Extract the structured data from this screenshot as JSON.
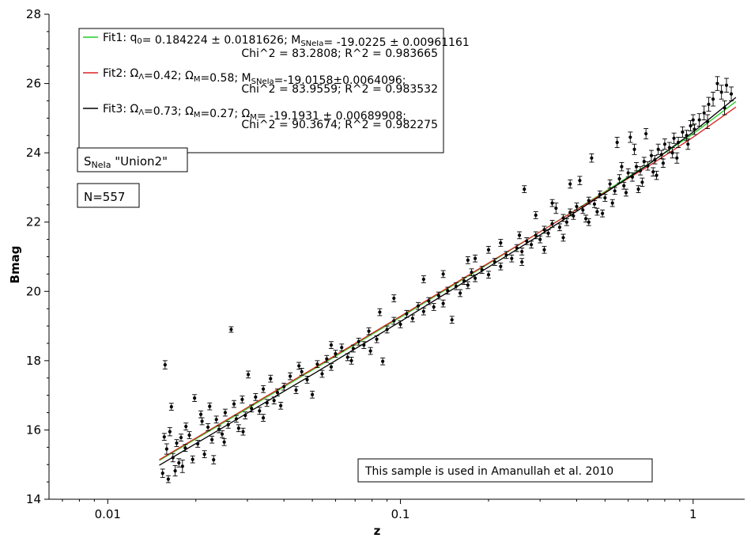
{
  "chart_data": {
    "type": "scatter",
    "xlabel": "z",
    "ylabel": "Bmag",
    "x_scale": "log",
    "xlim": [
      0.0063,
      1.5
    ],
    "ylim": [
      14,
      28
    ],
    "x_ticks": [
      {
        "value": 0.01,
        "label": "0.01"
      },
      {
        "value": 0.1,
        "label": "0.1"
      },
      {
        "value": 1,
        "label": "1"
      }
    ],
    "y_ticks": [
      {
        "value": 14,
        "label": "14"
      },
      {
        "value": 16,
        "label": "16"
      },
      {
        "value": 18,
        "label": "18"
      },
      {
        "value": 20,
        "label": "20"
      },
      {
        "value": 22,
        "label": "22"
      },
      {
        "value": 24,
        "label": "24"
      },
      {
        "value": 26,
        "label": "26"
      },
      {
        "value": 28,
        "label": "28"
      }
    ],
    "grid": false,
    "legend_placement": "top-left",
    "legend": [
      {
        "name": "Fit1",
        "color": "#22cc22",
        "label_main": "Fit1: q",
        "label_sub": "0",
        "label_rest": "= 0.184224 ± 0.0181626; M",
        "label_sub2": "SNeIa",
        "label_rest2": "= -19.0225 ± 0.00961161",
        "line2": "Chi^2 = 83.2808; R^2 = 0.983665"
      },
      {
        "name": "Fit2",
        "color": "#dd2222",
        "label_main": "Fit2: Ω",
        "label_sub": "Λ",
        "label_rest": "=0.42; Ω",
        "label_sub2": "M",
        "label_rest2": "=0.58; M",
        "label_sub3": "SNeIa",
        "label_rest3": "=-19.0158±0.0064096;",
        "line2": "Chi^2 = 83.9559; R^2 = 0.983532"
      },
      {
        "name": "Fit3",
        "color": "#000000",
        "label_main": "Fit3: Ω",
        "label_sub": "Λ",
        "label_rest": "=0.73; Ω",
        "label_sub2": "M",
        "label_rest2": "=0.27; Ω",
        "label_sub3": "M",
        "label_rest3": "= -19.1931 ± 0.00689908;",
        "line2": "Chi^2 = 90.3674; R^2 = 0.982275"
      }
    ],
    "annotations": {
      "sample_main": "S",
      "sample_sub": "NeIa",
      "sample_rest": " \"Union2\"",
      "count": "N=557",
      "note": "This sample is used in Amanullah et al. 2010"
    },
    "fit_curves": [
      {
        "name": "Fit1",
        "color": "#22cc22",
        "points": [
          [
            0.015,
            15.12
          ],
          [
            0.03,
            16.62
          ],
          [
            0.05,
            17.73
          ],
          [
            0.1,
            19.25
          ],
          [
            0.2,
            20.8
          ],
          [
            0.3,
            21.72
          ],
          [
            0.5,
            22.88
          ],
          [
            0.7,
            23.66
          ],
          [
            1.0,
            24.55
          ],
          [
            1.4,
            25.48
          ]
        ]
      },
      {
        "name": "Fit2",
        "color": "#dd2222",
        "points": [
          [
            0.015,
            15.14
          ],
          [
            0.03,
            16.65
          ],
          [
            0.05,
            17.76
          ],
          [
            0.1,
            19.28
          ],
          [
            0.2,
            20.82
          ],
          [
            0.3,
            21.72
          ],
          [
            0.5,
            22.86
          ],
          [
            0.7,
            23.6
          ],
          [
            1.0,
            24.45
          ],
          [
            1.4,
            25.32
          ]
        ]
      },
      {
        "name": "Fit3",
        "color": "#000000",
        "points": [
          [
            0.015,
            14.98
          ],
          [
            0.03,
            16.49
          ],
          [
            0.05,
            17.6
          ],
          [
            0.1,
            19.13
          ],
          [
            0.2,
            20.7
          ],
          [
            0.3,
            21.63
          ],
          [
            0.5,
            22.84
          ],
          [
            0.7,
            23.65
          ],
          [
            1.0,
            24.6
          ],
          [
            1.4,
            25.6
          ]
        ]
      }
    ],
    "points": [
      {
        "x": 0.0154,
        "y": 14.75,
        "err": 0.12
      },
      {
        "x": 0.0156,
        "y": 15.8,
        "err": 0.1
      },
      {
        "x": 0.0157,
        "y": 17.88,
        "err": 0.12
      },
      {
        "x": 0.0159,
        "y": 15.45,
        "err": 0.15
      },
      {
        "x": 0.0161,
        "y": 14.58,
        "err": 0.1
      },
      {
        "x": 0.0163,
        "y": 15.95,
        "err": 0.12
      },
      {
        "x": 0.0165,
        "y": 16.67,
        "err": 0.1
      },
      {
        "x": 0.0167,
        "y": 15.2,
        "err": 0.12
      },
      {
        "x": 0.017,
        "y": 14.82,
        "err": 0.15
      },
      {
        "x": 0.0172,
        "y": 15.62,
        "err": 0.1
      },
      {
        "x": 0.0175,
        "y": 15.05,
        "err": 0.12
      },
      {
        "x": 0.0178,
        "y": 15.78,
        "err": 0.1
      },
      {
        "x": 0.018,
        "y": 14.95,
        "err": 0.18
      },
      {
        "x": 0.0184,
        "y": 15.48,
        "err": 0.1
      },
      {
        "x": 0.019,
        "y": 15.85,
        "err": 0.1
      },
      {
        "x": 0.0195,
        "y": 15.15,
        "err": 0.1
      },
      {
        "x": 0.0198,
        "y": 16.92,
        "err": 0.1
      },
      {
        "x": 0.0203,
        "y": 15.6,
        "err": 0.1
      },
      {
        "x": 0.0208,
        "y": 16.45,
        "err": 0.1
      },
      {
        "x": 0.0214,
        "y": 15.3,
        "err": 0.1
      },
      {
        "x": 0.022,
        "y": 16.08,
        "err": 0.1
      },
      {
        "x": 0.0223,
        "y": 16.68,
        "err": 0.1
      },
      {
        "x": 0.0227,
        "y": 15.72,
        "err": 0.1
      },
      {
        "x": 0.023,
        "y": 15.14,
        "err": 0.12
      },
      {
        "x": 0.0235,
        "y": 16.3,
        "err": 0.1
      },
      {
        "x": 0.024,
        "y": 16.02,
        "err": 0.1
      },
      {
        "x": 0.0246,
        "y": 15.88,
        "err": 0.1
      },
      {
        "x": 0.0252,
        "y": 16.5,
        "err": 0.1
      },
      {
        "x": 0.0258,
        "y": 16.15,
        "err": 0.1
      },
      {
        "x": 0.0264,
        "y": 18.9,
        "err": 0.08
      },
      {
        "x": 0.027,
        "y": 16.75,
        "err": 0.1
      },
      {
        "x": 0.0275,
        "y": 16.32,
        "err": 0.1
      },
      {
        "x": 0.028,
        "y": 16.05,
        "err": 0.1
      },
      {
        "x": 0.0288,
        "y": 16.88,
        "err": 0.1
      },
      {
        "x": 0.0295,
        "y": 16.42,
        "err": 0.1
      },
      {
        "x": 0.0302,
        "y": 17.6,
        "err": 0.1
      },
      {
        "x": 0.031,
        "y": 16.62,
        "err": 0.1
      },
      {
        "x": 0.032,
        "y": 16.95,
        "err": 0.1
      },
      {
        "x": 0.033,
        "y": 16.55,
        "err": 0.1
      },
      {
        "x": 0.034,
        "y": 17.18,
        "err": 0.1
      },
      {
        "x": 0.035,
        "y": 16.78,
        "err": 0.1
      },
      {
        "x": 0.036,
        "y": 17.48,
        "err": 0.1
      },
      {
        "x": 0.037,
        "y": 16.85,
        "err": 0.1
      },
      {
        "x": 0.038,
        "y": 17.08,
        "err": 0.1
      },
      {
        "x": 0.04,
        "y": 17.25,
        "err": 0.1
      },
      {
        "x": 0.042,
        "y": 17.55,
        "err": 0.1
      },
      {
        "x": 0.044,
        "y": 17.15,
        "err": 0.1
      },
      {
        "x": 0.046,
        "y": 17.68,
        "err": 0.1
      },
      {
        "x": 0.048,
        "y": 17.45,
        "err": 0.1
      },
      {
        "x": 0.05,
        "y": 17.02,
        "err": 0.1
      },
      {
        "x": 0.052,
        "y": 17.9,
        "err": 0.1
      },
      {
        "x": 0.054,
        "y": 17.62,
        "err": 0.1
      },
      {
        "x": 0.056,
        "y": 18.05,
        "err": 0.1
      },
      {
        "x": 0.058,
        "y": 17.82,
        "err": 0.1
      },
      {
        "x": 0.06,
        "y": 18.2,
        "err": 0.1
      },
      {
        "x": 0.063,
        "y": 18.38,
        "err": 0.1
      },
      {
        "x": 0.066,
        "y": 18.1,
        "err": 0.1
      },
      {
        "x": 0.069,
        "y": 18.35,
        "err": 0.1
      },
      {
        "x": 0.072,
        "y": 18.55,
        "err": 0.1
      },
      {
        "x": 0.075,
        "y": 18.45,
        "err": 0.1
      },
      {
        "x": 0.079,
        "y": 18.28,
        "err": 0.1
      },
      {
        "x": 0.083,
        "y": 18.62,
        "err": 0.1
      },
      {
        "x": 0.087,
        "y": 17.98,
        "err": 0.1
      },
      {
        "x": 0.09,
        "y": 18.9,
        "err": 0.1
      },
      {
        "x": 0.095,
        "y": 19.15,
        "err": 0.1
      },
      {
        "x": 0.1,
        "y": 19.05,
        "err": 0.1
      },
      {
        "x": 0.105,
        "y": 19.35,
        "err": 0.1
      },
      {
        "x": 0.11,
        "y": 19.22,
        "err": 0.1
      },
      {
        "x": 0.115,
        "y": 19.58,
        "err": 0.1
      },
      {
        "x": 0.12,
        "y": 19.42,
        "err": 0.1
      },
      {
        "x": 0.125,
        "y": 19.72,
        "err": 0.1
      },
      {
        "x": 0.13,
        "y": 19.55,
        "err": 0.1
      },
      {
        "x": 0.135,
        "y": 19.88,
        "err": 0.1
      },
      {
        "x": 0.14,
        "y": 19.65,
        "err": 0.1
      },
      {
        "x": 0.145,
        "y": 20.02,
        "err": 0.1
      },
      {
        "x": 0.15,
        "y": 19.18,
        "err": 0.1
      },
      {
        "x": 0.155,
        "y": 20.15,
        "err": 0.1
      },
      {
        "x": 0.16,
        "y": 19.95,
        "err": 0.1
      },
      {
        "x": 0.165,
        "y": 20.3,
        "err": 0.1
      },
      {
        "x": 0.17,
        "y": 20.18,
        "err": 0.1
      },
      {
        "x": 0.175,
        "y": 20.55,
        "err": 0.1
      },
      {
        "x": 0.18,
        "y": 20.38,
        "err": 0.1
      },
      {
        "x": 0.19,
        "y": 20.62,
        "err": 0.1
      },
      {
        "x": 0.2,
        "y": 20.48,
        "err": 0.1
      },
      {
        "x": 0.21,
        "y": 20.85,
        "err": 0.1
      },
      {
        "x": 0.22,
        "y": 20.72,
        "err": 0.1
      },
      {
        "x": 0.23,
        "y": 21.05,
        "err": 0.1
      },
      {
        "x": 0.24,
        "y": 20.95,
        "err": 0.1
      },
      {
        "x": 0.25,
        "y": 21.25,
        "err": 0.1
      },
      {
        "x": 0.255,
        "y": 21.62,
        "err": 0.1
      },
      {
        "x": 0.26,
        "y": 21.15,
        "err": 0.1
      },
      {
        "x": 0.265,
        "y": 22.95,
        "err": 0.1
      },
      {
        "x": 0.27,
        "y": 21.45,
        "err": 0.1
      },
      {
        "x": 0.28,
        "y": 21.35,
        "err": 0.1
      },
      {
        "x": 0.29,
        "y": 21.62,
        "err": 0.1
      },
      {
        "x": 0.3,
        "y": 21.5,
        "err": 0.1
      },
      {
        "x": 0.31,
        "y": 21.78,
        "err": 0.1
      },
      {
        "x": 0.32,
        "y": 21.68,
        "err": 0.1
      },
      {
        "x": 0.33,
        "y": 21.95,
        "err": 0.1
      },
      {
        "x": 0.34,
        "y": 22.4,
        "err": 0.15
      },
      {
        "x": 0.35,
        "y": 21.85,
        "err": 0.1
      },
      {
        "x": 0.36,
        "y": 22.12,
        "err": 0.1
      },
      {
        "x": 0.37,
        "y": 22.0,
        "err": 0.1
      },
      {
        "x": 0.38,
        "y": 22.28,
        "err": 0.1
      },
      {
        "x": 0.39,
        "y": 22.18,
        "err": 0.1
      },
      {
        "x": 0.4,
        "y": 22.45,
        "err": 0.1
      },
      {
        "x": 0.42,
        "y": 22.35,
        "err": 0.1
      },
      {
        "x": 0.44,
        "y": 22.62,
        "err": 0.1
      },
      {
        "x": 0.46,
        "y": 22.52,
        "err": 0.1
      },
      {
        "x": 0.48,
        "y": 22.8,
        "err": 0.1
      },
      {
        "x": 0.5,
        "y": 22.7,
        "err": 0.1
      },
      {
        "x": 0.52,
        "y": 23.1,
        "err": 0.12
      },
      {
        "x": 0.54,
        "y": 22.9,
        "err": 0.1
      },
      {
        "x": 0.56,
        "y": 23.25,
        "err": 0.12
      },
      {
        "x": 0.58,
        "y": 23.05,
        "err": 0.1
      },
      {
        "x": 0.6,
        "y": 23.42,
        "err": 0.12
      },
      {
        "x": 0.62,
        "y": 23.3,
        "err": 0.12
      },
      {
        "x": 0.64,
        "y": 23.6,
        "err": 0.12
      },
      {
        "x": 0.66,
        "y": 23.48,
        "err": 0.12
      },
      {
        "x": 0.68,
        "y": 23.75,
        "err": 0.12
      },
      {
        "x": 0.7,
        "y": 23.62,
        "err": 0.12
      },
      {
        "x": 0.72,
        "y": 23.92,
        "err": 0.15
      },
      {
        "x": 0.74,
        "y": 23.8,
        "err": 0.12
      },
      {
        "x": 0.76,
        "y": 24.1,
        "err": 0.15
      },
      {
        "x": 0.78,
        "y": 23.95,
        "err": 0.12
      },
      {
        "x": 0.8,
        "y": 24.25,
        "err": 0.15
      },
      {
        "x": 0.83,
        "y": 24.15,
        "err": 0.15
      },
      {
        "x": 0.86,
        "y": 24.42,
        "err": 0.15
      },
      {
        "x": 0.89,
        "y": 24.3,
        "err": 0.15
      },
      {
        "x": 0.92,
        "y": 24.6,
        "err": 0.15
      },
      {
        "x": 0.95,
        "y": 24.5,
        "err": 0.15
      },
      {
        "x": 0.98,
        "y": 24.78,
        "err": 0.15
      },
      {
        "x": 1.01,
        "y": 24.68,
        "err": 0.15
      },
      {
        "x": 1.05,
        "y": 24.95,
        "err": 0.18
      },
      {
        "x": 1.09,
        "y": 25.15,
        "err": 0.2
      },
      {
        "x": 1.13,
        "y": 25.4,
        "err": 0.2
      },
      {
        "x": 1.17,
        "y": 25.55,
        "err": 0.2
      },
      {
        "x": 1.21,
        "y": 26.0,
        "err": 0.2
      },
      {
        "x": 1.25,
        "y": 25.75,
        "err": 0.2
      },
      {
        "x": 1.3,
        "y": 25.95,
        "err": 0.2
      },
      {
        "x": 1.35,
        "y": 25.7,
        "err": 0.2
      },
      {
        "x": 0.45,
        "y": 23.85,
        "err": 0.12
      },
      {
        "x": 0.41,
        "y": 23.2,
        "err": 0.12
      },
      {
        "x": 0.57,
        "y": 23.6,
        "err": 0.12
      },
      {
        "x": 0.63,
        "y": 24.1,
        "err": 0.15
      },
      {
        "x": 0.43,
        "y": 22.1,
        "err": 0.1
      },
      {
        "x": 0.47,
        "y": 22.3,
        "err": 0.1
      },
      {
        "x": 0.53,
        "y": 22.55,
        "err": 0.1
      },
      {
        "x": 0.59,
        "y": 22.85,
        "err": 0.1
      },
      {
        "x": 0.67,
        "y": 23.15,
        "err": 0.12
      },
      {
        "x": 0.73,
        "y": 23.45,
        "err": 0.12
      },
      {
        "x": 0.79,
        "y": 23.7,
        "err": 0.12
      },
      {
        "x": 0.85,
        "y": 24.0,
        "err": 0.15
      },
      {
        "x": 0.55,
        "y": 24.3,
        "err": 0.15
      },
      {
        "x": 0.61,
        "y": 24.45,
        "err": 0.15
      },
      {
        "x": 0.69,
        "y": 24.55,
        "err": 0.15
      },
      {
        "x": 0.38,
        "y": 23.1,
        "err": 0.12
      },
      {
        "x": 0.33,
        "y": 22.55,
        "err": 0.1
      },
      {
        "x": 0.29,
        "y": 22.2,
        "err": 0.1
      },
      {
        "x": 0.22,
        "y": 21.4,
        "err": 0.1
      },
      {
        "x": 0.2,
        "y": 21.2,
        "err": 0.1
      },
      {
        "x": 0.18,
        "y": 20.95,
        "err": 0.1
      },
      {
        "x": 0.26,
        "y": 20.85,
        "err": 0.1
      },
      {
        "x": 0.31,
        "y": 21.2,
        "err": 0.1
      },
      {
        "x": 0.36,
        "y": 21.55,
        "err": 0.1
      },
      {
        "x": 0.44,
        "y": 22.0,
        "err": 0.1
      },
      {
        "x": 0.49,
        "y": 22.25,
        "err": 0.1
      },
      {
        "x": 0.65,
        "y": 22.95,
        "err": 0.1
      },
      {
        "x": 0.75,
        "y": 23.35,
        "err": 0.12
      },
      {
        "x": 0.88,
        "y": 23.85,
        "err": 0.15
      },
      {
        "x": 0.96,
        "y": 24.25,
        "err": 0.15
      },
      {
        "x": 1.0,
        "y": 24.95,
        "err": 0.15
      },
      {
        "x": 1.12,
        "y": 24.9,
        "err": 0.2
      },
      {
        "x": 1.28,
        "y": 25.3,
        "err": 0.2
      },
      {
        "x": 0.12,
        "y": 20.35,
        "err": 0.1
      },
      {
        "x": 0.14,
        "y": 20.5,
        "err": 0.1
      },
      {
        "x": 0.17,
        "y": 20.9,
        "err": 0.1
      },
      {
        "x": 0.095,
        "y": 19.8,
        "err": 0.1
      },
      {
        "x": 0.085,
        "y": 19.4,
        "err": 0.1
      },
      {
        "x": 0.078,
        "y": 18.85,
        "err": 0.1
      },
      {
        "x": 0.068,
        "y": 18.0,
        "err": 0.1
      },
      {
        "x": 0.058,
        "y": 18.45,
        "err": 0.1
      },
      {
        "x": 0.045,
        "y": 17.85,
        "err": 0.1
      },
      {
        "x": 0.039,
        "y": 16.7,
        "err": 0.1
      },
      {
        "x": 0.034,
        "y": 16.35,
        "err": 0.1
      },
      {
        "x": 0.029,
        "y": 15.95,
        "err": 0.1
      },
      {
        "x": 0.025,
        "y": 15.65,
        "err": 0.1
      },
      {
        "x": 0.021,
        "y": 16.25,
        "err": 0.1
      },
      {
        "x": 0.0185,
        "y": 16.1,
        "err": 0.1
      }
    ]
  }
}
